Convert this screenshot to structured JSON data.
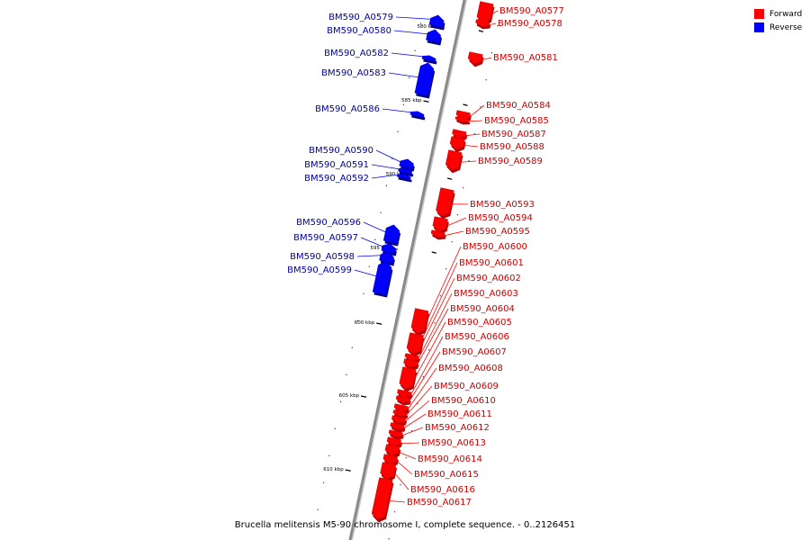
{
  "caption": "Brucella melitensis M5-90 chromosome I, complete sequence. - 0..2126451",
  "legend": [
    {
      "label": "Forward",
      "color": "#ff0000"
    },
    {
      "label": "Reverse",
      "color": "#0000ff"
    }
  ],
  "colors": {
    "forward": "#ff0000",
    "forward_label": "#cc0000",
    "reverse": "#0000ff",
    "reverse_label": "#0000a0",
    "backbone": "#8a8a8a"
  },
  "ticks": [
    "580 kbp",
    "585 kbp",
    "590 kbp",
    "595 kbp",
    "600 kbp",
    "605 kbp",
    "610 kbp"
  ],
  "genes": [
    {
      "name": "BM590_A0577",
      "strand": "forward"
    },
    {
      "name": "BM590_A0578",
      "strand": "forward"
    },
    {
      "name": "BM590_A0579",
      "strand": "reverse"
    },
    {
      "name": "BM590_A0580",
      "strand": "reverse"
    },
    {
      "name": "BM590_A0581",
      "strand": "forward"
    },
    {
      "name": "BM590_A0582",
      "strand": "reverse"
    },
    {
      "name": "BM590_A0583",
      "strand": "reverse"
    },
    {
      "name": "BM590_A0584",
      "strand": "forward"
    },
    {
      "name": "BM590_A0585",
      "strand": "forward"
    },
    {
      "name": "BM590_A0586",
      "strand": "reverse"
    },
    {
      "name": "BM590_A0587",
      "strand": "forward"
    },
    {
      "name": "BM590_A0588",
      "strand": "forward"
    },
    {
      "name": "BM590_A0589",
      "strand": "forward"
    },
    {
      "name": "BM590_A0590",
      "strand": "reverse"
    },
    {
      "name": "BM590_A0591",
      "strand": "reverse"
    },
    {
      "name": "BM590_A0592",
      "strand": "reverse"
    },
    {
      "name": "BM590_A0593",
      "strand": "forward"
    },
    {
      "name": "BM590_A0594",
      "strand": "forward"
    },
    {
      "name": "BM590_A0595",
      "strand": "forward"
    },
    {
      "name": "BM590_A0596",
      "strand": "reverse"
    },
    {
      "name": "BM590_A0597",
      "strand": "reverse"
    },
    {
      "name": "BM590_A0598",
      "strand": "reverse"
    },
    {
      "name": "BM590_A0599",
      "strand": "reverse"
    },
    {
      "name": "BM590_A0600",
      "strand": "forward"
    },
    {
      "name": "BM590_A0601",
      "strand": "forward"
    },
    {
      "name": "BM590_A0602",
      "strand": "forward"
    },
    {
      "name": "BM590_A0603",
      "strand": "forward"
    },
    {
      "name": "BM590_A0604",
      "strand": "forward"
    },
    {
      "name": "BM590_A0605",
      "strand": "forward"
    },
    {
      "name": "BM590_A0606",
      "strand": "forward"
    },
    {
      "name": "BM590_A0607",
      "strand": "forward"
    },
    {
      "name": "BM590_A0608",
      "strand": "forward"
    },
    {
      "name": "BM590_A0609",
      "strand": "forward"
    },
    {
      "name": "BM590_A0610",
      "strand": "forward"
    },
    {
      "name": "BM590_A0611",
      "strand": "forward"
    },
    {
      "name": "BM590_A0612",
      "strand": "forward"
    },
    {
      "name": "BM590_A0613",
      "strand": "forward"
    },
    {
      "name": "BM590_A0614",
      "strand": "forward"
    },
    {
      "name": "BM590_A0615",
      "strand": "forward"
    },
    {
      "name": "BM590_A0616",
      "strand": "forward"
    },
    {
      "name": "BM590_A0617",
      "strand": "forward"
    }
  ]
}
